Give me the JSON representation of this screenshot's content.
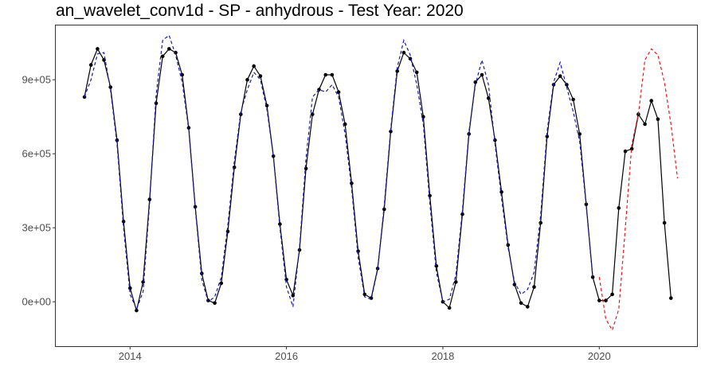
{
  "chart_data": {
    "type": "line",
    "title": "an_wavelet_conv1d - SP - anhydrous - Test Year: 2020",
    "xlabel": "",
    "ylabel": "",
    "x_ticks": [
      {
        "year": 2014,
        "label": "2014"
      },
      {
        "year": 2016,
        "label": "2016"
      },
      {
        "year": 2018,
        "label": "2018"
      },
      {
        "year": 2020,
        "label": "2020"
      }
    ],
    "y_ticks": [
      {
        "value": 0,
        "label": "0e+00"
      },
      {
        "value": 300000,
        "label": "3e+05"
      },
      {
        "value": 600000,
        "label": "6e+05"
      },
      {
        "value": 900000,
        "label": "9e+05"
      }
    ],
    "xlim": [
      2013.05,
      2021.25
    ],
    "ylim": [
      -180000,
      1120000
    ],
    "grid": false,
    "legend": "none",
    "x_start": "2013-06",
    "x_step": "1 month",
    "series": [
      {
        "style": "solid-with-points",
        "color": "#000000",
        "values": [
          830000,
          960000,
          1025000,
          980000,
          870000,
          655000,
          325000,
          55000,
          -35000,
          80000,
          415000,
          805000,
          995000,
          1025000,
          1010000,
          920000,
          705000,
          385000,
          115000,
          5000,
          -5000,
          75000,
          285000,
          545000,
          760000,
          900000,
          955000,
          915000,
          795000,
          590000,
          315000,
          90000,
          25000,
          210000,
          540000,
          760000,
          860000,
          920000,
          920000,
          850000,
          720000,
          480000,
          205000,
          30000,
          15000,
          135000,
          375000,
          690000,
          935000,
          1010000,
          985000,
          930000,
          750000,
          430000,
          145000,
          0,
          -25000,
          80000,
          355000,
          680000,
          890000,
          920000,
          825000,
          655000,
          445000,
          230000,
          70000,
          -5000,
          -20000,
          60000,
          320000,
          670000,
          880000,
          915000,
          880000,
          820000,
          680000,
          395000,
          100000,
          5000,
          5000,
          30000,
          380000,
          610000,
          620000,
          760000,
          720000,
          815000,
          740000,
          320000,
          15000
        ]
      },
      {
        "style": "dashed",
        "color": "#1a1aa6",
        "values": [
          830000,
          900000,
          1005000,
          1010000,
          860000,
          640000,
          300000,
          30000,
          -30000,
          40000,
          400000,
          840000,
          1060000,
          1080000,
          1000000,
          890000,
          700000,
          380000,
          90000,
          0,
          20000,
          100000,
          310000,
          570000,
          770000,
          860000,
          930000,
          900000,
          780000,
          590000,
          300000,
          60000,
          -20000,
          220000,
          580000,
          830000,
          860000,
          850000,
          880000,
          830000,
          680000,
          460000,
          180000,
          20000,
          10000,
          130000,
          390000,
          700000,
          950000,
          1060000,
          1000000,
          880000,
          720000,
          400000,
          120000,
          0,
          10000,
          110000,
          370000,
          690000,
          880000,
          980000,
          880000,
          640000,
          420000,
          220000,
          80000,
          30000,
          50000,
          120000,
          350000,
          690000,
          890000,
          970000,
          870000,
          770000,
          650000,
          390000,
          100000
        ]
      },
      {
        "style": "dashed",
        "color": "#e41a1c",
        "values": [
          100000,
          -70000,
          -115000,
          -30000,
          300000,
          640000,
          760000,
          980000,
          1025000,
          1000000,
          890000,
          720000,
          500000
        ]
      }
    ]
  }
}
